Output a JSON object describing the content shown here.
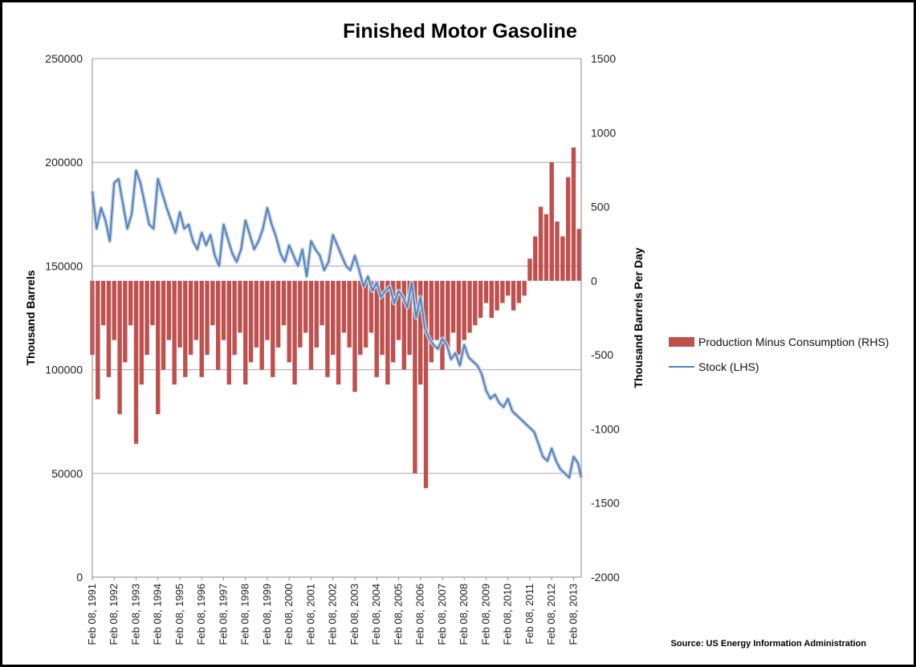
{
  "chart_data": {
    "type": "bar+line",
    "title": "Finished Motor Gasoline",
    "ylabel_left": "Thousand Barrels",
    "ylabel_right": "Thousand Barrels Per Day",
    "ylim_left": [
      0,
      250000
    ],
    "ylim_right": [
      -2000,
      1500
    ],
    "yticks_left": [
      "0",
      "50000",
      "100000",
      "150000",
      "200000",
      "250000"
    ],
    "yticks_right": [
      "-2000",
      "-1500",
      "-1000",
      "-500",
      "0",
      "500",
      "1000",
      "1500"
    ],
    "xlim": [
      1991.1,
      2013.45
    ],
    "xticks": [
      "Feb 08, 1991",
      "Feb 08, 1992",
      "Feb 08, 1993",
      "Feb 08, 1994",
      "Feb 08, 1995",
      "Feb 08, 1996",
      "Feb 08, 1997",
      "Feb 08, 1998",
      "Feb 08, 1999",
      "Feb 08, 2000",
      "Feb 08, 2001",
      "Feb 08, 2002",
      "Feb 08, 2003",
      "Feb 08, 2004",
      "Feb 08, 2005",
      "Feb 08, 2006",
      "Feb 08, 2007",
      "Feb 08, 2008",
      "Feb 08, 2009",
      "Feb 08, 2010",
      "Feb 08, 2011",
      "Feb 08, 2012",
      "Feb 08, 2013"
    ],
    "grid": "horizontal",
    "legend_position": "right",
    "series": [
      {
        "name": "Production Minus Consumption (RHS)",
        "kind": "bar",
        "axis": "right",
        "color": "#c0504d",
        "x": [
          1991.1,
          1991.35,
          1991.6,
          1991.85,
          1992.1,
          1992.35,
          1992.6,
          1992.85,
          1993.1,
          1993.35,
          1993.6,
          1993.85,
          1994.1,
          1994.35,
          1994.6,
          1994.85,
          1995.1,
          1995.35,
          1995.6,
          1995.85,
          1996.1,
          1996.35,
          1996.6,
          1996.85,
          1997.1,
          1997.35,
          1997.6,
          1997.85,
          1998.1,
          1998.35,
          1998.6,
          1998.85,
          1999.1,
          1999.35,
          1999.6,
          1999.85,
          2000.1,
          2000.35,
          2000.6,
          2000.85,
          2001.1,
          2001.35,
          2001.6,
          2001.85,
          2002.1,
          2002.35,
          2002.6,
          2002.85,
          2003.1,
          2003.35,
          2003.6,
          2003.85,
          2004.1,
          2004.35,
          2004.6,
          2004.85,
          2005.1,
          2005.35,
          2005.6,
          2005.85,
          2006.1,
          2006.35,
          2006.6,
          2006.85,
          2007.1,
          2007.35,
          2007.6,
          2007.85,
          2008.1,
          2008.35,
          2008.6,
          2008.85,
          2009.1,
          2009.35,
          2009.6,
          2009.85,
          2010.1,
          2010.35,
          2010.6,
          2010.85,
          2011.1,
          2011.35,
          2011.6,
          2011.85,
          2012.1,
          2012.35,
          2012.6,
          2012.85,
          2013.1,
          2013.35
        ],
        "values": [
          -500,
          -800,
          -300,
          -650,
          -400,
          -900,
          -550,
          -300,
          -1100,
          -700,
          -500,
          -300,
          -900,
          -600,
          -400,
          -700,
          -450,
          -650,
          -500,
          -400,
          -650,
          -500,
          -300,
          -600,
          -400,
          -700,
          -500,
          -350,
          -700,
          -550,
          -450,
          -600,
          -400,
          -650,
          -450,
          -300,
          -550,
          -700,
          -450,
          -350,
          -600,
          -450,
          -300,
          -650,
          -500,
          -700,
          -350,
          -450,
          -750,
          -500,
          -450,
          -350,
          -650,
          -500,
          -700,
          -550,
          -400,
          -600,
          -500,
          -1300,
          -700,
          -1400,
          -550,
          -400,
          -600,
          -450,
          -350,
          -500,
          -400,
          -350,
          -300,
          -250,
          -150,
          -250,
          -200,
          -150,
          -100,
          -200,
          -150,
          -100,
          150,
          300,
          500,
          450,
          800,
          400,
          300,
          700,
          900,
          350
        ]
      },
      {
        "name": "Stock (LHS)",
        "kind": "line",
        "axis": "left",
        "color": "#4f81bd",
        "x": [
          1991.1,
          1991.3,
          1991.5,
          1991.7,
          1991.9,
          1992.1,
          1992.3,
          1992.5,
          1992.7,
          1992.9,
          1993.1,
          1993.3,
          1993.5,
          1993.7,
          1993.9,
          1994.1,
          1994.3,
          1994.5,
          1994.7,
          1994.9,
          1995.1,
          1995.3,
          1995.5,
          1995.7,
          1995.9,
          1996.1,
          1996.3,
          1996.5,
          1996.7,
          1996.9,
          1997.1,
          1997.3,
          1997.5,
          1997.7,
          1997.9,
          1998.1,
          1998.3,
          1998.5,
          1998.7,
          1998.9,
          1999.1,
          1999.3,
          1999.5,
          1999.7,
          1999.9,
          2000.1,
          2000.3,
          2000.5,
          2000.7,
          2000.9,
          2001.1,
          2001.3,
          2001.5,
          2001.7,
          2001.9,
          2002.1,
          2002.3,
          2002.5,
          2002.7,
          2002.9,
          2003.1,
          2003.3,
          2003.5,
          2003.7,
          2003.9,
          2004.1,
          2004.3,
          2004.5,
          2004.7,
          2004.9,
          2005.1,
          2005.3,
          2005.5,
          2005.7,
          2005.9,
          2006.1,
          2006.3,
          2006.5,
          2006.7,
          2006.9,
          2007.1,
          2007.3,
          2007.5,
          2007.7,
          2007.9,
          2008.1,
          2008.3,
          2008.5,
          2008.7,
          2008.9,
          2009.1,
          2009.3,
          2009.5,
          2009.7,
          2009.9,
          2010.1,
          2010.3,
          2010.5,
          2010.7,
          2010.9,
          2011.1,
          2011.3,
          2011.5,
          2011.7,
          2011.9,
          2012.1,
          2012.3,
          2012.5,
          2012.7,
          2012.9,
          2013.1,
          2013.3,
          2013.45
        ],
        "values": [
          186000,
          168000,
          178000,
          172000,
          162000,
          190000,
          192000,
          180000,
          168000,
          175000,
          196000,
          190000,
          180000,
          170000,
          168000,
          192000,
          185000,
          178000,
          172000,
          166000,
          176000,
          168000,
          170000,
          162000,
          158000,
          166000,
          160000,
          165000,
          155000,
          150000,
          170000,
          163000,
          156000,
          152000,
          158000,
          172000,
          165000,
          158000,
          162000,
          168000,
          178000,
          170000,
          164000,
          156000,
          152000,
          160000,
          155000,
          150000,
          158000,
          145000,
          162000,
          158000,
          155000,
          148000,
          152000,
          165000,
          160000,
          155000,
          150000,
          148000,
          155000,
          148000,
          140000,
          145000,
          138000,
          142000,
          135000,
          138000,
          140000,
          132000,
          138000,
          135000,
          130000,
          142000,
          125000,
          135000,
          120000,
          115000,
          112000,
          110000,
          115000,
          112000,
          105000,
          108000,
          102000,
          112000,
          106000,
          104000,
          102000,
          98000,
          90000,
          86000,
          88000,
          84000,
          82000,
          86000,
          80000,
          78000,
          76000,
          74000,
          72000,
          70000,
          64000,
          58000,
          56000,
          62000,
          56000,
          52000,
          50000,
          48000,
          58000,
          55000,
          48000
        ]
      }
    ],
    "annotations": [
      "Source: US Energy Information Administration"
    ]
  }
}
